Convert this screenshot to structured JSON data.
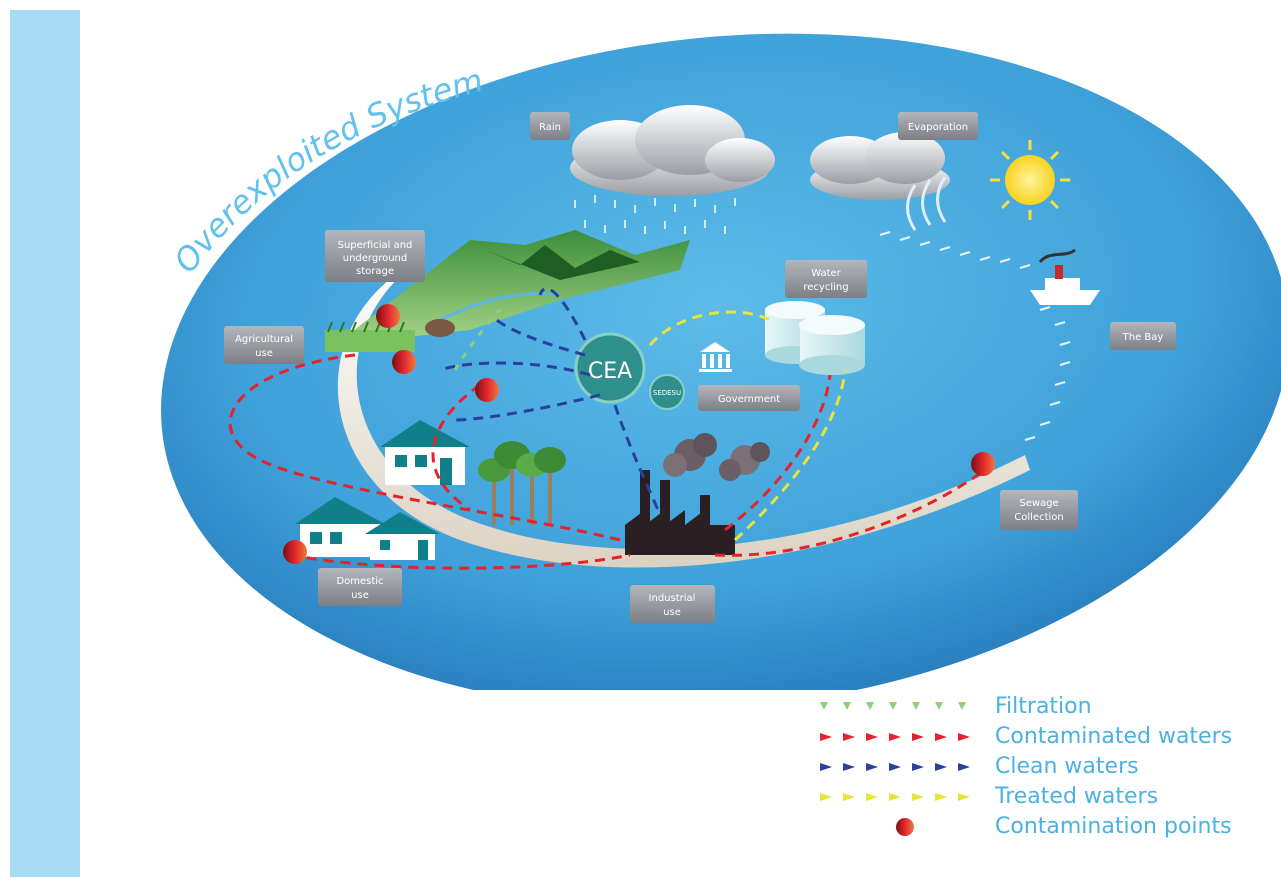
{
  "title": "Overexploited System",
  "labels": {
    "rain": "Rain",
    "evaporation": "Evaporation",
    "storage_l1": "Superficial and",
    "storage_l2": "underground",
    "storage_l3": "storage",
    "water_recycling_l1": "Water",
    "water_recycling_l2": "recycling",
    "agricultural_l1": "Agricultural",
    "agricultural_l2": "use",
    "the_bay": "The Bay",
    "cea": "CEA",
    "sedesu": "SEDESU",
    "government": "Government",
    "sewage_l1": "Sewage",
    "sewage_l2": "Collection",
    "domestic_l1": "Domestic",
    "domestic_l2": "use",
    "industrial_l1": "Industrial",
    "industrial_l2": "use"
  },
  "legend": [
    {
      "kind": "filtration",
      "label": "Filtration",
      "color": "#8fcf7a"
    },
    {
      "kind": "contaminated",
      "label": "Contaminated waters",
      "color": "#e4232b"
    },
    {
      "kind": "clean",
      "label": "Clean waters",
      "color": "#2a3f9e"
    },
    {
      "kind": "treated",
      "label": "Treated waters",
      "color": "#e8e43a"
    },
    {
      "kind": "points",
      "label": "Contamination points",
      "color": "#d5262e"
    }
  ],
  "colors": {
    "contaminated": "#e4232b",
    "clean": "#2a3f9e",
    "treated": "#e8e43a",
    "filtration": "#8fcf7a",
    "legend_text": "#4ab1e0",
    "ellipse": "#4aa8dc",
    "side_bar": "#a7dbf3"
  }
}
